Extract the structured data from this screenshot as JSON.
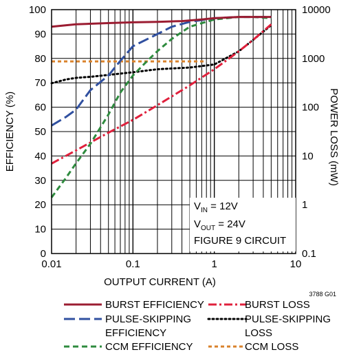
{
  "chart_data": {
    "type": "line",
    "title": "",
    "xlabel": "OUTPUT CURRENT (A)",
    "ylabel": "EFFICIENCY (%)",
    "y2label": "POWER LOSS (mW)",
    "x_scale": "log",
    "xlim": [
      0.01,
      10
    ],
    "ylim": [
      0,
      100
    ],
    "y2_scale": "log",
    "y2lim": [
      0.1,
      10000
    ],
    "grid": true,
    "x_ticks": [
      0.01,
      0.1,
      1,
      10
    ],
    "x_tick_labels": [
      "0.01",
      "0.1",
      "1",
      "10"
    ],
    "y_ticks": [
      0,
      10,
      20,
      30,
      40,
      50,
      60,
      70,
      80,
      90,
      100
    ],
    "y_tick_labels": [
      "0",
      "10",
      "20",
      "30",
      "40",
      "50",
      "60",
      "70",
      "80",
      "90",
      "100"
    ],
    "y2_ticks": [
      0.1,
      1,
      10,
      100,
      1000,
      10000
    ],
    "y2_tick_labels": [
      "0.1",
      "1",
      "10",
      "100",
      "1000",
      "10000"
    ],
    "annotation": {
      "vin_main": "V",
      "vin_sub": "IN",
      "vin_rest": " = 12V",
      "vout_main": "V",
      "vout_sub": "OUT",
      "vout_rest": " = 24V",
      "circuit": "FIGURE 9 CIRCUIT"
    },
    "figure_id": "3788 G01",
    "series": [
      {
        "name": "BURST EFFICIENCY",
        "axis": "left",
        "color": "#9b1c31",
        "dash": "solid",
        "points": [
          [
            0.01,
            93
          ],
          [
            0.02,
            94
          ],
          [
            0.05,
            94.5
          ],
          [
            0.1,
            94.8
          ],
          [
            0.2,
            95
          ],
          [
            0.4,
            95.3
          ],
          [
            0.7,
            96
          ],
          [
            1,
            96.5
          ],
          [
            2,
            97
          ],
          [
            3,
            97
          ],
          [
            5,
            97
          ]
        ]
      },
      {
        "name": "PULSE-SKIPPING EFFICIENCY",
        "axis": "left",
        "color": "#3050a0",
        "dash": "longdash",
        "points": [
          [
            0.01,
            52.5
          ],
          [
            0.015,
            56
          ],
          [
            0.02,
            59
          ],
          [
            0.03,
            67
          ],
          [
            0.05,
            73
          ],
          [
            0.07,
            79
          ],
          [
            0.1,
            85
          ],
          [
            0.2,
            90
          ],
          [
            0.3,
            93
          ],
          [
            0.5,
            95
          ],
          [
            1,
            96.5
          ],
          [
            2,
            97
          ],
          [
            3,
            97
          ],
          [
            5,
            97
          ]
        ]
      },
      {
        "name": "CCM EFFICIENCY",
        "axis": "left",
        "color": "#2e8b3e",
        "dash": "dash",
        "points": [
          [
            0.01,
            23
          ],
          [
            0.015,
            31
          ],
          [
            0.02,
            37
          ],
          [
            0.03,
            45
          ],
          [
            0.05,
            57
          ],
          [
            0.07,
            66
          ],
          [
            0.1,
            73
          ],
          [
            0.15,
            79
          ],
          [
            0.2,
            83
          ],
          [
            0.3,
            88
          ],
          [
            0.5,
            93
          ],
          [
            1,
            96
          ],
          [
            2,
            97
          ],
          [
            3,
            97
          ],
          [
            5,
            96.5
          ]
        ]
      },
      {
        "name": "BURST LOSS",
        "axis": "right",
        "color": "#e0203c",
        "dash": "dashdot",
        "points": [
          [
            0.01,
            7
          ],
          [
            0.02,
            13
          ],
          [
            0.05,
            30
          ],
          [
            0.1,
            55
          ],
          [
            0.2,
            110
          ],
          [
            0.5,
            280
          ],
          [
            1,
            600
          ],
          [
            2,
            1400
          ],
          [
            3,
            2400
          ],
          [
            5,
            5000
          ]
        ]
      },
      {
        "name": "PULSE-SKIPPING LOSS",
        "axis": "right",
        "color": "#000000",
        "dash": "dot",
        "points": [
          [
            0.01,
            310
          ],
          [
            0.015,
            370
          ],
          [
            0.02,
            400
          ],
          [
            0.03,
            420
          ],
          [
            0.05,
            460
          ],
          [
            0.1,
            520
          ],
          [
            0.2,
            600
          ],
          [
            0.5,
            650
          ],
          [
            1,
            750
          ],
          [
            2,
            1400
          ],
          [
            3,
            2400
          ],
          [
            5,
            4800
          ]
        ]
      },
      {
        "name": "CCM LOSS",
        "axis": "right",
        "color": "#d9822b",
        "dash": "shortdash",
        "points": [
          [
            0.01,
            870
          ],
          [
            0.05,
            870
          ],
          [
            0.1,
            870
          ],
          [
            0.2,
            870
          ],
          [
            0.5,
            870
          ],
          [
            0.8,
            870
          ]
        ]
      }
    ],
    "legend": [
      {
        "label": "BURST EFFICIENCY",
        "label2": "",
        "series": 0,
        "position": "left-1"
      },
      {
        "label": "PULSE-SKIPPING",
        "label2": "EFFICIENCY",
        "series": 1,
        "position": "left-2"
      },
      {
        "label": "CCM EFFICIENCY",
        "label2": "",
        "series": 2,
        "position": "left-3"
      },
      {
        "label": "BURST LOSS",
        "label2": "",
        "series": 3,
        "position": "right-1"
      },
      {
        "label": "PULSE-SKIPPING",
        "label2": "LOSS",
        "series": 4,
        "position": "right-2"
      },
      {
        "label": "CCM LOSS",
        "label2": "",
        "series": 5,
        "position": "right-3"
      }
    ],
    "legend_placement": "bottom"
  }
}
